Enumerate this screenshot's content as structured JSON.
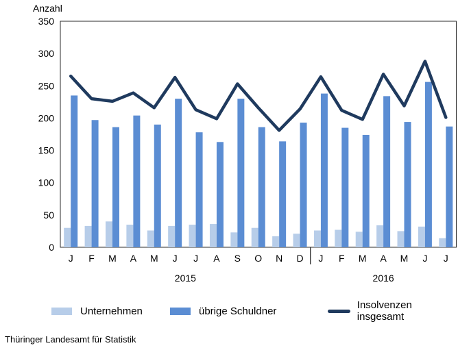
{
  "footer": {
    "source": "Thüringer Landesamt für Statistik"
  },
  "legend": {
    "items": [
      {
        "label": "Unternehmen",
        "swatch": "bar",
        "color": "#b7cde9"
      },
      {
        "label": "übrige Schuldner",
        "swatch": "bar",
        "color": "#5b8dd3"
      },
      {
        "label": "Insolvenzen insgesamt",
        "swatch": "line",
        "color": "#1f3a5e"
      }
    ]
  },
  "chart_data": {
    "type": "bar",
    "title": "",
    "ylabel": "Anzahl",
    "xlabel": "",
    "ylim": [
      0,
      350
    ],
    "ytick_step": 50,
    "grid": false,
    "legend_position": "bottom",
    "categories": [
      "J",
      "F",
      "M",
      "A",
      "M",
      "J",
      "J",
      "A",
      "S",
      "O",
      "N",
      "D",
      "J",
      "F",
      "M",
      "A",
      "M",
      "J",
      "J"
    ],
    "year_groups": [
      {
        "label": "2015",
        "months": 12
      },
      {
        "label": "2016",
        "months": 7
      }
    ],
    "series": [
      {
        "name": "Unternehmen",
        "type": "bar",
        "color": "#b7cde9",
        "values": [
          30,
          33,
          40,
          35,
          26,
          33,
          35,
          36,
          23,
          30,
          17,
          21,
          26,
          27,
          24,
          34,
          25,
          32,
          14
        ]
      },
      {
        "name": "übrige Schuldner",
        "type": "bar",
        "color": "#5b8dd3",
        "values": [
          235,
          197,
          186,
          204,
          190,
          230,
          178,
          163,
          230,
          186,
          164,
          193,
          238,
          185,
          174,
          234,
          194,
          256,
          187
        ]
      },
      {
        "name": "Insolvenzen insgesamt",
        "type": "line",
        "color": "#1f3a5e",
        "values": [
          265,
          230,
          226,
          239,
          216,
          263,
          213,
          199,
          253,
          216,
          181,
          214,
          264,
          212,
          198,
          268,
          219,
          288,
          201
        ]
      }
    ]
  }
}
